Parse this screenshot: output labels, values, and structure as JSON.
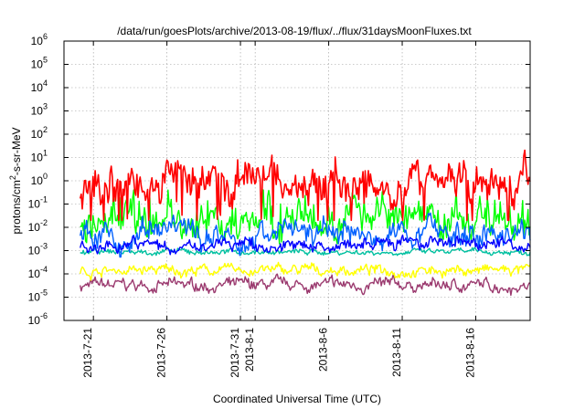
{
  "chart_data": {
    "type": "line",
    "title": "/data/run/goesPlots/archive/2013-08-19/flux/../flux/31daysMoonFluxes.txt",
    "xlabel": "Coordinated Universal Time (UTC)",
    "ylabel": "protons/cm2-s-sr-MeV",
    "ylabel_parts": {
      "before": "protons/cm",
      "sup": "2",
      "after": "-s-sr-MeV"
    },
    "yscale": "log",
    "ylim": [
      1e-06,
      1000000.0
    ],
    "xlim_days": [
      -2.0,
      29.7
    ],
    "y_ticks": [
      {
        "base": "10",
        "exp": "-6"
      },
      {
        "base": "10",
        "exp": "-5"
      },
      {
        "base": "10",
        "exp": "-4"
      },
      {
        "base": "10",
        "exp": "-3"
      },
      {
        "base": "10",
        "exp": "-2"
      },
      {
        "base": "10",
        "exp": "-1"
      },
      {
        "base": "10",
        "exp": "0"
      },
      {
        "base": "10",
        "exp": "1"
      },
      {
        "base": "10",
        "exp": "2"
      },
      {
        "base": "10",
        "exp": "3"
      },
      {
        "base": "10",
        "exp": "4"
      },
      {
        "base": "10",
        "exp": "5"
      },
      {
        "base": "10",
        "exp": "6"
      }
    ],
    "x_ticks": [
      {
        "label": "2013-7-21",
        "date": "2013-07-21"
      },
      {
        "label": "2013-7-26",
        "date": "2013-07-26"
      },
      {
        "label": "2013-7-31",
        "date": "2013-07-31"
      },
      {
        "label": "2013-8-1",
        "date": "2013-08-01"
      },
      {
        "label": "2013-8-6",
        "date": "2013-08-06"
      },
      {
        "label": "2013-8-11",
        "date": "2013-08-11"
      },
      {
        "label": "2013-8-16",
        "date": "2013-08-16"
      }
    ],
    "grid": true,
    "legend": "none",
    "series": [
      {
        "color": "#ff0000",
        "approx_range": [
          0.02,
          30
        ]
      },
      {
        "color": "#00ff00",
        "approx_range": [
          0.001,
          0.4
        ]
      },
      {
        "color": "#0060ff",
        "approx_range": [
          0.0004,
          0.05
        ]
      },
      {
        "color": "#0000ff",
        "approx_range": [
          0.0005,
          0.006
        ]
      },
      {
        "color": "#00c0a0",
        "approx_range": [
          0.0005,
          0.0015
        ]
      },
      {
        "color": "#ffff00",
        "approx_range": [
          5e-05,
          0.0004
        ]
      },
      {
        "color": "#9b3a6f",
        "approx_range": [
          1e-05,
          0.0001
        ]
      }
    ]
  }
}
